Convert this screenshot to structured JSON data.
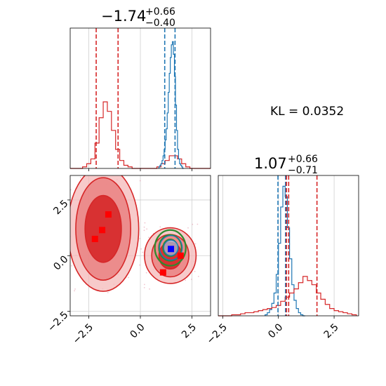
{
  "chart_data": [
    {
      "type": "histogram",
      "panel": "top-left",
      "title": {
        "value": "−1.74",
        "plus": "+0.66",
        "minus": "−0.40"
      },
      "xlim": [
        -3.4,
        3.4
      ],
      "grid": true,
      "series": [
        {
          "color": "#d62728",
          "bin_edges": [
            -3.4,
            -3.2,
            -3.0,
            -2.8,
            -2.6,
            -2.4,
            -2.2,
            -2.0,
            -1.8,
            -1.6,
            -1.4,
            -1.2,
            -1.0,
            -0.8,
            -0.6,
            -0.4,
            -0.2,
            0.0,
            0.2,
            0.4,
            0.6,
            0.8,
            1.0,
            1.2,
            1.4,
            1.6,
            1.8,
            2.0,
            2.2,
            2.4,
            2.6,
            2.8,
            3.0,
            3.2,
            3.4
          ],
          "counts": [
            0,
            0,
            0,
            1,
            3,
            6,
            16,
            32,
            42,
            36,
            24,
            12,
            5,
            2,
            1,
            0,
            0,
            0,
            0,
            0,
            0,
            1,
            3,
            5,
            8,
            8,
            6,
            3,
            1,
            0,
            0,
            0,
            0,
            0
          ]
        },
        {
          "color": "#1f77b4",
          "bin_edges": [
            0.9,
            0.95,
            1.0,
            1.05,
            1.1,
            1.15,
            1.2,
            1.25,
            1.3,
            1.35,
            1.4,
            1.45,
            1.5,
            1.55,
            1.6,
            1.65,
            1.7,
            1.75,
            1.8,
            1.85,
            1.9,
            1.95,
            2.0,
            2.05,
            2.1
          ],
          "counts": [
            1,
            2,
            3,
            5,
            8,
            12,
            18,
            25,
            35,
            48,
            60,
            70,
            78,
            80,
            72,
            58,
            40,
            24,
            12,
            6,
            3,
            2,
            1,
            0
          ]
        }
      ],
      "vlines": [
        {
          "x": -2.14,
          "color": "#d62728"
        },
        {
          "x": -1.08,
          "color": "#d62728"
        },
        {
          "x": 1.18,
          "color": "#1f77b4"
        },
        {
          "x": 1.68,
          "color": "#1f77b4"
        }
      ],
      "ymax": 85
    },
    {
      "type": "contour",
      "panel": "bottom-left",
      "xlim": [
        -3.4,
        3.4
      ],
      "ylim": [
        -2.7,
        3.6
      ],
      "xticks": [
        "−2.5",
        "0.0",
        "2.5"
      ],
      "yticks": [
        "−2.5",
        "0.0",
        "2.5"
      ],
      "grid": true,
      "red_regions": [
        {
          "cx": -1.8,
          "cy": 1.2,
          "rx": [
            1.72,
            1.33,
            0.88
          ],
          "ry": [
            2.8,
            2.3,
            1.5
          ]
        },
        {
          "cx": 1.45,
          "cy": 0.0,
          "rx": [
            1.25,
            0.9,
            0.55
          ],
          "ry": [
            1.25,
            0.95,
            0.6
          ]
        }
      ],
      "blue_regions": [
        {
          "cx": 1.48,
          "cy": 0.35,
          "rx": [
            0.55,
            0.35
          ],
          "ry": [
            0.55,
            0.35
          ]
        }
      ],
      "green_regions": [
        {
          "cx": 1.45,
          "cy": 0.35,
          "rx": [
            0.75,
            0.55,
            0.35
          ],
          "ry": [
            0.8,
            0.58,
            0.38
          ]
        }
      ],
      "red_markers": [
        {
          "x": -1.55,
          "y": 1.85
        },
        {
          "x": -1.85,
          "y": 1.15
        },
        {
          "x": -2.2,
          "y": 0.75
        },
        {
          "x": 1.1,
          "y": -0.75
        },
        {
          "x": 1.95,
          "y": 0.0
        }
      ],
      "blue_marker": {
        "x": 1.48,
        "y": 0.3
      }
    },
    {
      "type": "histogram",
      "panel": "bottom-right",
      "title": {
        "value": "1.07",
        "plus": "+0.66",
        "minus": "−0.71"
      },
      "xlim": [
        -2.7,
        3.6
      ],
      "xticks": [
        "−2.5",
        "0.0",
        "2.5"
      ],
      "grid": true,
      "series": [
        {
          "color": "#1f77b4",
          "bin_edges": [
            -0.6,
            -0.5,
            -0.4,
            -0.3,
            -0.2,
            -0.1,
            0.0,
            0.1,
            0.2,
            0.3,
            0.4,
            0.5,
            0.6,
            0.7,
            0.8,
            0.9,
            1.0,
            1.1,
            1.2
          ],
          "counts": [
            1,
            3,
            6,
            12,
            22,
            40,
            70,
            105,
            125,
            115,
            85,
            55,
            30,
            15,
            7,
            3,
            1,
            0
          ]
        },
        {
          "color": "#d62728",
          "bin_edges": [
            -2.7,
            -2.5,
            -2.3,
            -2.1,
            -1.9,
            -1.7,
            -1.5,
            -1.3,
            -1.1,
            -0.9,
            -0.7,
            -0.5,
            -0.3,
            -0.1,
            0.1,
            0.3,
            0.5,
            0.7,
            0.9,
            1.1,
            1.3,
            1.5,
            1.7,
            1.9,
            2.1,
            2.3,
            2.5,
            2.7,
            2.9,
            3.1,
            3.3,
            3.5
          ],
          "counts": [
            0,
            0,
            0,
            1,
            1,
            2,
            3,
            3,
            4,
            5,
            6,
            7,
            8,
            10,
            14,
            18,
            22,
            26,
            32,
            38,
            34,
            30,
            22,
            16,
            11,
            7,
            5,
            4,
            3,
            2,
            1
          ]
        }
      ],
      "vlines": [
        {
          "x": -0.02,
          "color": "#1f77b4"
        },
        {
          "x": 0.32,
          "color": "#1f77b4"
        },
        {
          "x": 0.36,
          "color": "#d62728"
        },
        {
          "x": 0.46,
          "color": "#d62728"
        },
        {
          "x": 1.73,
          "color": "#d62728"
        }
      ],
      "ymax": 130
    }
  ],
  "annotation": {
    "text": "KL = 0.0352"
  }
}
